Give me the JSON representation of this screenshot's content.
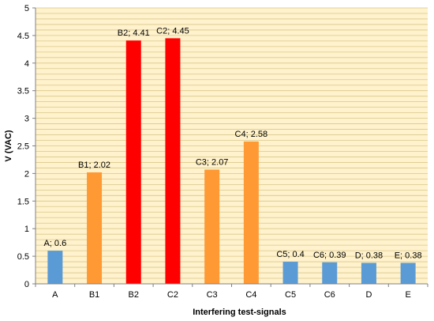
{
  "chart_data": {
    "type": "bar",
    "title": "",
    "xlabel": "Interfering test-signals",
    "ylabel": "V (VAC)",
    "ylim": [
      0,
      5
    ],
    "ytick_step": 0.5,
    "minor_grid_step": 0.1,
    "grid": true,
    "legend": "none",
    "categories": [
      "A",
      "B1",
      "B2",
      "C2",
      "C3",
      "C4",
      "C5",
      "C6",
      "D",
      "E"
    ],
    "values": [
      0.6,
      2.02,
      4.41,
      4.45,
      2.07,
      2.58,
      0.4,
      0.39,
      0.38,
      0.38
    ],
    "data_labels": [
      "A; 0.6",
      "B1; 2.02",
      "B2; 4.41",
      "C2; 4.45",
      "C3; 2.07",
      "C4; 2.58",
      "C5; 0.4",
      "C6; 0.39",
      "D; 0.38",
      "E; 0.38"
    ],
    "bar_colors": [
      "#5b9bd5",
      "#ff9933",
      "#ff0000",
      "#ff0000",
      "#ff9933",
      "#ff9933",
      "#5b9bd5",
      "#5b9bd5",
      "#5b9bd5",
      "#5b9bd5"
    ],
    "plot_background": "#fff2cc",
    "grid_color": "#d9c88c"
  }
}
